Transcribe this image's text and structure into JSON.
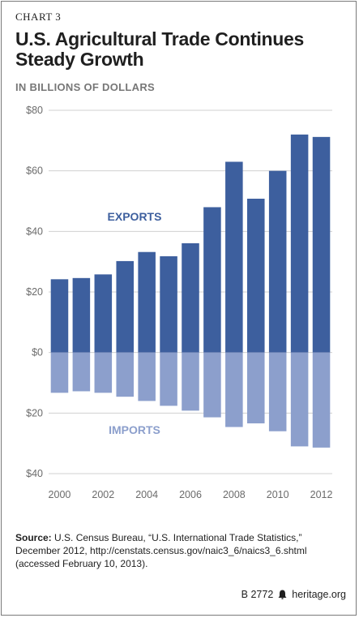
{
  "header": {
    "kicker": "CHART 3",
    "title": "U.S. Agricultural Trade Continues Steady Growth",
    "subtitle": "IN BILLIONS OF DOLLARS"
  },
  "colors": {
    "exports": "#3d5f9e",
    "imports": "#8c9fcc",
    "grid": "#d0d0d0",
    "axis_text": "#6b6b6b"
  },
  "chart_data": {
    "type": "bar",
    "categories": [
      2000,
      2001,
      2002,
      2003,
      2004,
      2005,
      2006,
      2007,
      2008,
      2009,
      2010,
      2011,
      2012
    ],
    "series": [
      {
        "name": "EXPORTS",
        "values": [
          24.2,
          24.6,
          25.8,
          30.2,
          33.2,
          31.8,
          36.1,
          48.0,
          63.0,
          50.8,
          60.0,
          72.0,
          71.2
        ]
      },
      {
        "name": "IMPORTS",
        "values": [
          13.3,
          12.8,
          13.3,
          14.6,
          16.0,
          17.6,
          19.2,
          21.4,
          24.6,
          23.4,
          26.0,
          31.0,
          31.4
        ]
      }
    ],
    "ylim": [
      -40,
      80
    ],
    "y_ticks": [
      {
        "value": 80,
        "label": "$80"
      },
      {
        "value": 60,
        "label": "$60"
      },
      {
        "value": 40,
        "label": "$40"
      },
      {
        "value": 20,
        "label": "$20"
      },
      {
        "value": 0,
        "label": "$0"
      },
      {
        "value": -20,
        "label": "$20"
      },
      {
        "value": -40,
        "label": "$40"
      }
    ],
    "x_tick_labels": [
      "2000",
      "2002",
      "2004",
      "2006",
      "2008",
      "2010",
      "2012"
    ],
    "grid": true,
    "legend": "inline labels"
  },
  "source": {
    "label": "Source:",
    "text": " U.S. Census Bureau, “U.S. International Trade Statistics,” December 2012, http://censtats.census.gov/naic3_6/naics3_6.shtml (accessed February 10, 2013)."
  },
  "footer": {
    "code": "B 2772",
    "site": "heritage.org"
  }
}
